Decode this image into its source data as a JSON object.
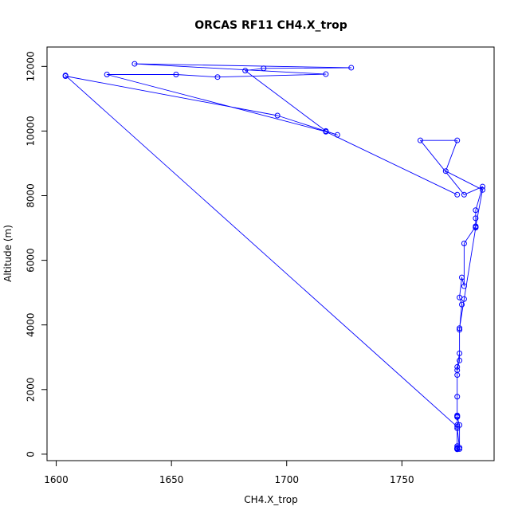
{
  "chart_data": {
    "type": "line",
    "title": "ORCAS RF11 CH4.X_trop",
    "xlabel": "CH4.X_trop",
    "ylabel": "Altitude (m)",
    "xlim": [
      1596,
      1790
    ],
    "ylim": [
      -200,
      12600
    ],
    "xticks": [
      "1600",
      "1650",
      "1700",
      "1750"
    ],
    "yticks": [
      "0",
      "2000",
      "4000",
      "6000",
      "8000",
      "10000",
      "12000"
    ],
    "grid": false,
    "legend": "none",
    "series_color": "#0000ff",
    "series": [
      {
        "x": [
          1774,
          1774,
          1774,
          1774,
          1775,
          1775,
          1774,
          1774,
          1774,
          1774,
          1774,
          1775,
          1775,
          1776,
          1775,
          1776,
          1777,
          1777,
          1782,
          1782,
          1782,
          1785,
          1777,
          1758,
          1774,
          1769,
          1785,
          1782,
          1782,
          1782,
          1777,
          1775,
          1775,
          1774,
          1774,
          1774,
          1774,
          1774,
          1774,
          1774,
          1774,
          1774,
          1774,
          1775,
          1774,
          1604,
          1604,
          1696,
          1722,
          1717,
          1682,
          1690,
          1728,
          1634,
          1717,
          1670,
          1652,
          1622,
          1717,
          1774
        ],
        "y": [
          150,
          160,
          170,
          180,
          200,
          900,
          1150,
          1180,
          1780,
          2450,
          2700,
          3120,
          3850,
          4630,
          4850,
          5470,
          5200,
          6520,
          7050,
          7300,
          7550,
          8280,
          8030,
          9710,
          9710,
          8760,
          8180,
          7050,
          7020,
          7010,
          4800,
          3900,
          2900,
          2600,
          1200,
          1150,
          900,
          800,
          250,
          200,
          170,
          160,
          155,
          160,
          850,
          11720,
          11700,
          10480,
          9880,
          10000,
          11870,
          11940,
          11960,
          12080,
          11760,
          11670,
          11750,
          11750,
          9980,
          8030
        ]
      }
    ]
  }
}
